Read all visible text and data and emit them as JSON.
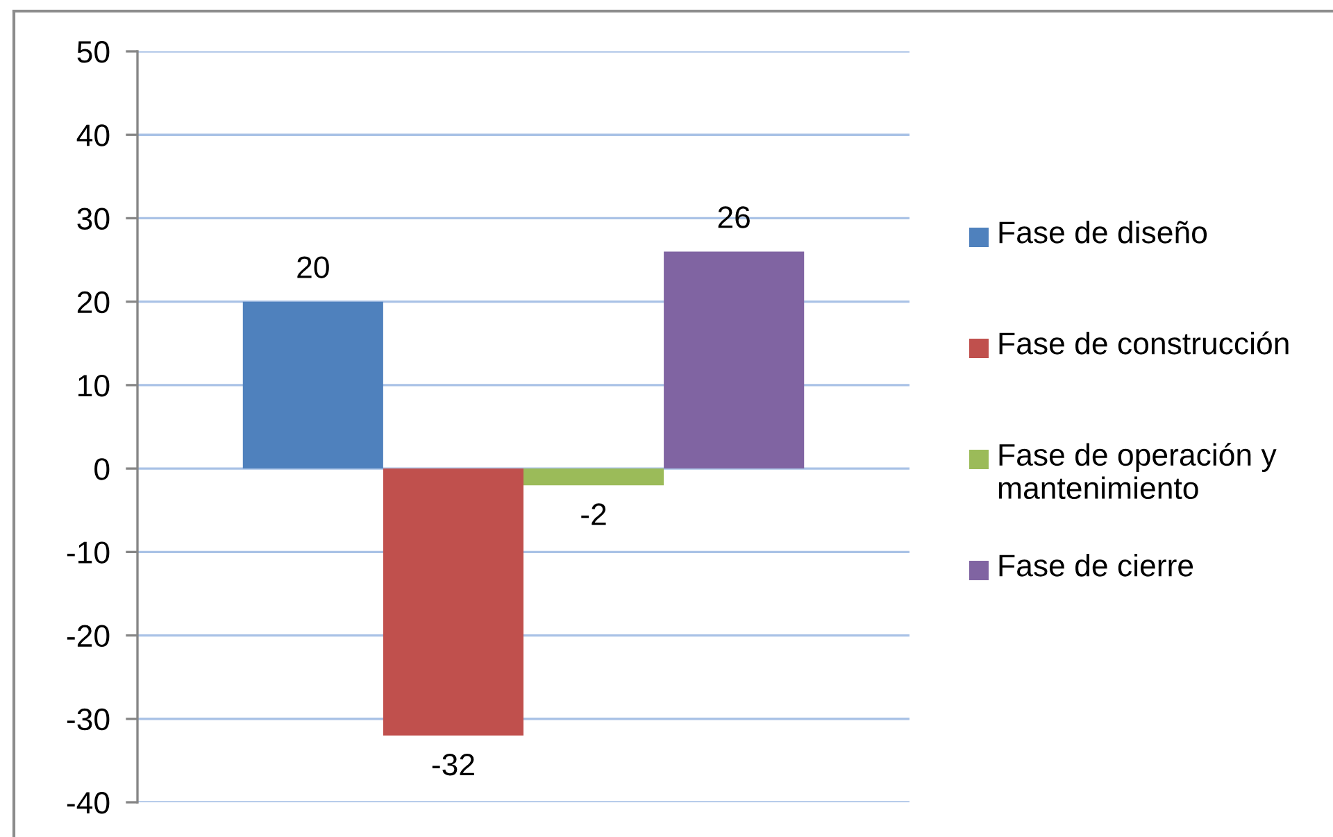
{
  "chart_data": {
    "type": "bar",
    "categories": [
      null
    ],
    "series": [
      {
        "name": "Fase de diseño",
        "color": "#4f81bd",
        "values": [
          20
        ]
      },
      {
        "name": "Fase de construcción",
        "color": "#c0504d",
        "values": [
          -32
        ]
      },
      {
        "name": "Fase de operación y mantenimiento",
        "color": "#9bbb59",
        "values": [
          -2
        ]
      },
      {
        "name": "Fase de cierre",
        "color": "#8064a2",
        "values": [
          26
        ]
      }
    ],
    "ylim": [
      -40,
      50
    ],
    "yticks": [
      -40,
      -30,
      -20,
      -10,
      0,
      10,
      20,
      30,
      40,
      50
    ],
    "grid": "y",
    "legend": "right",
    "data_labels": true,
    "tick_labels": "y"
  }
}
